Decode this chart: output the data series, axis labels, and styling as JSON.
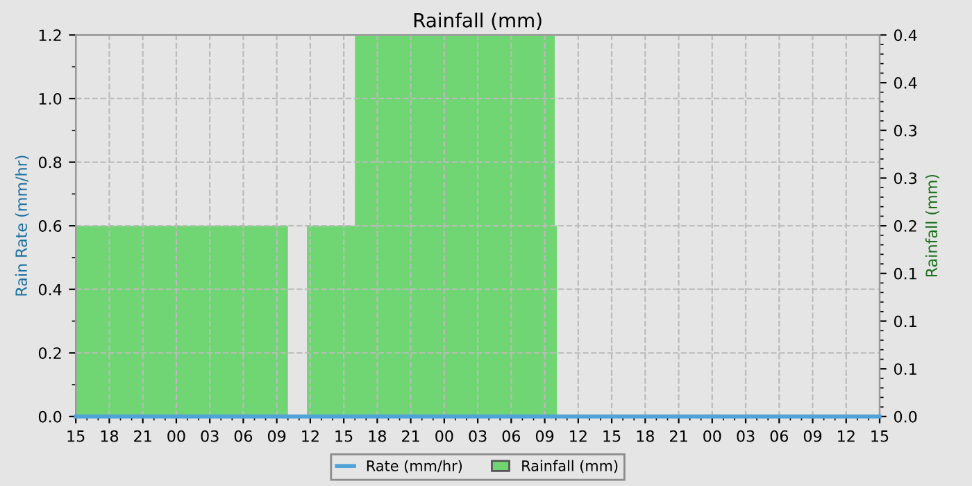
{
  "chart_data": {
    "type": "area",
    "title": "Rainfall (mm)",
    "ylabel": "Rain Rate (mm/hr)",
    "y2label": "Rainfall (mm)",
    "xlim": [
      15,
      87
    ],
    "xticks": [
      {
        "value": 15,
        "label": "15"
      },
      {
        "value": 18,
        "label": "18"
      },
      {
        "value": 21,
        "label": "21"
      },
      {
        "value": 24,
        "label": "00"
      },
      {
        "value": 27,
        "label": "03"
      },
      {
        "value": 30,
        "label": "06"
      },
      {
        "value": 33,
        "label": "09"
      },
      {
        "value": 36,
        "label": "12"
      },
      {
        "value": 39,
        "label": "15"
      },
      {
        "value": 42,
        "label": "18"
      },
      {
        "value": 45,
        "label": "21"
      },
      {
        "value": 48,
        "label": "00"
      },
      {
        "value": 51,
        "label": "03"
      },
      {
        "value": 54,
        "label": "06"
      },
      {
        "value": 57,
        "label": "09"
      },
      {
        "value": 60,
        "label": "12"
      },
      {
        "value": 63,
        "label": "15"
      },
      {
        "value": 66,
        "label": "18"
      },
      {
        "value": 69,
        "label": "21"
      },
      {
        "value": 72,
        "label": "00"
      },
      {
        "value": 75,
        "label": "03"
      },
      {
        "value": 78,
        "label": "06"
      },
      {
        "value": 81,
        "label": "09"
      },
      {
        "value": 84,
        "label": "12"
      },
      {
        "value": 87,
        "label": "15"
      }
    ],
    "ylim": [
      0,
      1.2
    ],
    "yticks": [
      {
        "value": 0,
        "label": "0.0"
      },
      {
        "value": 0.2,
        "label": "0.2"
      },
      {
        "value": 0.4,
        "label": "0.4"
      },
      {
        "value": 0.6,
        "label": "0.6"
      },
      {
        "value": 0.8,
        "label": "0.8"
      },
      {
        "value": 1.0,
        "label": "1.0"
      },
      {
        "value": 1.2,
        "label": "1.2"
      }
    ],
    "y2lim": [
      0,
      0.4
    ],
    "y2ticks": [
      {
        "value": 0,
        "label": "0.0"
      },
      {
        "value": 0.05,
        "label": "0.1"
      },
      {
        "value": 0.1,
        "label": "0.1"
      },
      {
        "value": 0.15,
        "label": "0.1"
      },
      {
        "value": 0.2,
        "label": "0.2"
      },
      {
        "value": 0.25,
        "label": "0.3"
      },
      {
        "value": 0.3,
        "label": "0.3"
      },
      {
        "value": 0.35,
        "label": "0.4"
      },
      {
        "value": 0.4,
        "label": "0.4"
      }
    ],
    "grid": true,
    "legend": "bottom",
    "series": [
      {
        "name": "Rate (mm/hr)",
        "type": "line",
        "color": "#4fa3d8",
        "x": [
          15,
          87
        ],
        "values": [
          0,
          0
        ]
      },
      {
        "name": "Rainfall (mm)",
        "axis": "y2",
        "color": "#70d673",
        "x": [
          15,
          34,
          34.5,
          35.7,
          40,
          40,
          57.9,
          57.9,
          58.1
        ],
        "values": [
          0.2,
          0.2,
          null,
          0.2,
          0.2,
          0.4,
          0.4,
          0.2,
          0.2
        ]
      }
    ]
  }
}
